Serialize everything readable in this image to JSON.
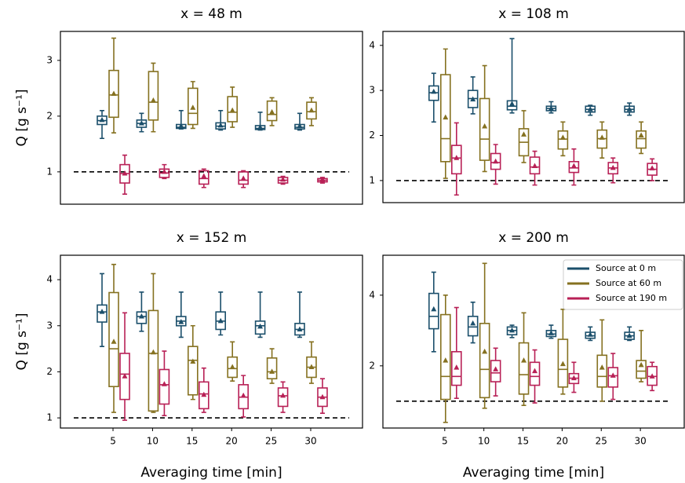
{
  "chart_data": [
    {
      "type": "box",
      "title": "x = 48 m",
      "ylabel": "Q [g s⁻¹]",
      "x": [
        5,
        10,
        15,
        20,
        25,
        30
      ],
      "xlim": [
        -1.65,
        36.55
      ],
      "ylim": [
        0.42,
        3.52
      ],
      "yticks": [
        1,
        2,
        3
      ],
      "reference_line": 1,
      "series": [
        {
          "color": "#1b4f6b",
          "values": [
            {
              "low": 1.6,
              "q1": 1.85,
              "median": 1.92,
              "q3": 2.0,
              "high": 2.1,
              "mean": 1.93
            },
            {
              "low": 1.72,
              "q1": 1.8,
              "median": 1.87,
              "q3": 1.93,
              "high": 2.05,
              "mean": 1.87
            },
            {
              "low": 1.77,
              "q1": 1.78,
              "median": 1.8,
              "q3": 1.85,
              "high": 2.1,
              "mean": 1.82
            },
            {
              "low": 1.75,
              "q1": 1.77,
              "median": 1.82,
              "q3": 1.88,
              "high": 2.1,
              "mean": 1.83
            },
            {
              "low": 1.75,
              "q1": 1.76,
              "median": 1.78,
              "q3": 1.83,
              "high": 2.07,
              "mean": 1.8
            },
            {
              "low": 1.75,
              "q1": 1.77,
              "median": 1.8,
              "q3": 1.85,
              "high": 2.05,
              "mean": 1.82
            }
          ]
        },
        {
          "color": "#857120",
          "values": [
            {
              "low": 1.7,
              "q1": 1.98,
              "median": 2.38,
              "q3": 2.82,
              "high": 3.4,
              "mean": 2.4
            },
            {
              "low": 1.72,
              "q1": 1.93,
              "median": 2.25,
              "q3": 2.8,
              "high": 2.95,
              "mean": 2.28
            },
            {
              "low": 1.78,
              "q1": 1.85,
              "median": 2.05,
              "q3": 2.5,
              "high": 2.62,
              "mean": 2.15
            },
            {
              "low": 1.8,
              "q1": 1.9,
              "median": 2.07,
              "q3": 2.35,
              "high": 2.52,
              "mean": 2.1
            },
            {
              "low": 1.83,
              "q1": 1.92,
              "median": 2.03,
              "q3": 2.27,
              "high": 2.33,
              "mean": 2.07
            },
            {
              "low": 1.83,
              "q1": 1.95,
              "median": 2.08,
              "q3": 2.25,
              "high": 2.33,
              "mean": 2.1
            }
          ]
        },
        {
          "color": "#b82056",
          "values": [
            {
              "low": 0.6,
              "q1": 0.8,
              "median": 0.97,
              "q3": 1.13,
              "high": 1.3,
              "mean": 0.97
            },
            {
              "low": 0.88,
              "q1": 0.9,
              "median": 0.98,
              "q3": 1.05,
              "high": 1.13,
              "mean": 1.0
            },
            {
              "low": 0.72,
              "q1": 0.78,
              "median": 0.88,
              "q3": 1.02,
              "high": 1.05,
              "mean": 0.92
            },
            {
              "low": 0.72,
              "q1": 0.78,
              "median": 0.85,
              "q3": 1.0,
              "high": 1.02,
              "mean": 0.88
            },
            {
              "low": 0.78,
              "q1": 0.8,
              "median": 0.85,
              "q3": 0.9,
              "high": 0.92,
              "mean": 0.86
            },
            {
              "low": 0.8,
              "q1": 0.82,
              "median": 0.85,
              "q3": 0.88,
              "high": 0.9,
              "mean": 0.86
            }
          ]
        }
      ]
    },
    {
      "type": "box",
      "title": "x = 108 m",
      "x": [
        5,
        10,
        15,
        20,
        25,
        30
      ],
      "xlim": [
        -2.9,
        35.6
      ],
      "ylim": [
        0.51,
        4.31
      ],
      "yticks": [
        1,
        2,
        3,
        4
      ],
      "reference_line": 1,
      "series": [
        {
          "color": "#1b4f6b",
          "values": [
            {
              "low": 2.3,
              "q1": 2.78,
              "median": 2.95,
              "q3": 3.1,
              "high": 3.38,
              "mean": 2.97
            },
            {
              "low": 2.48,
              "q1": 2.62,
              "median": 2.82,
              "q3": 3.0,
              "high": 3.3,
              "mean": 2.8
            },
            {
              "low": 2.5,
              "q1": 2.57,
              "median": 2.65,
              "q3": 2.77,
              "high": 4.15,
              "mean": 2.7
            },
            {
              "low": 2.5,
              "q1": 2.55,
              "median": 2.6,
              "q3": 2.65,
              "high": 2.75,
              "mean": 2.6
            },
            {
              "low": 2.45,
              "q1": 2.52,
              "median": 2.58,
              "q3": 2.65,
              "high": 2.67,
              "mean": 2.58
            },
            {
              "low": 2.45,
              "q1": 2.52,
              "median": 2.58,
              "q3": 2.65,
              "high": 2.72,
              "mean": 2.58
            }
          ]
        },
        {
          "color": "#857120",
          "values": [
            {
              "low": 1.05,
              "q1": 1.42,
              "median": 1.93,
              "q3": 3.35,
              "high": 3.92,
              "mean": 2.4
            },
            {
              "low": 1.2,
              "q1": 1.45,
              "median": 1.92,
              "q3": 2.82,
              "high": 3.55,
              "mean": 2.2
            },
            {
              "low": 1.4,
              "q1": 1.55,
              "median": 1.85,
              "q3": 2.15,
              "high": 2.55,
              "mean": 2.02
            },
            {
              "low": 1.55,
              "q1": 1.7,
              "median": 1.92,
              "q3": 2.1,
              "high": 2.3,
              "mean": 1.95
            },
            {
              "low": 1.5,
              "q1": 1.72,
              "median": 1.93,
              "q3": 2.12,
              "high": 2.3,
              "mean": 1.95
            },
            {
              "low": 1.6,
              "q1": 1.72,
              "median": 1.93,
              "q3": 2.1,
              "high": 2.3,
              "mean": 2.0
            }
          ]
        },
        {
          "color": "#b82056",
          "values": [
            {
              "low": 0.68,
              "q1": 1.15,
              "median": 1.5,
              "q3": 1.78,
              "high": 2.28,
              "mean": 1.5
            },
            {
              "low": 0.92,
              "q1": 1.25,
              "median": 1.4,
              "q3": 1.6,
              "high": 1.8,
              "mean": 1.42
            },
            {
              "low": 0.9,
              "q1": 1.15,
              "median": 1.3,
              "q3": 1.52,
              "high": 1.65,
              "mean": 1.32
            },
            {
              "low": 0.9,
              "q1": 1.18,
              "median": 1.28,
              "q3": 1.42,
              "high": 1.7,
              "mean": 1.32
            },
            {
              "low": 0.95,
              "q1": 1.15,
              "median": 1.28,
              "q3": 1.4,
              "high": 1.5,
              "mean": 1.28
            },
            {
              "low": 1.0,
              "q1": 1.12,
              "median": 1.25,
              "q3": 1.38,
              "high": 1.48,
              "mean": 1.27
            }
          ]
        }
      ]
    },
    {
      "type": "box",
      "title": "x = 152 m",
      "ylabel": "Q [g s⁻¹]",
      "xlabel": "Averaging time [min]",
      "x": [
        5,
        10,
        15,
        20,
        25,
        30
      ],
      "xticks": [
        5,
        10,
        15,
        20,
        25,
        30
      ],
      "xlim": [
        -1.65,
        36.55
      ],
      "ylim": [
        0.78,
        4.53
      ],
      "yticks": [
        1,
        2,
        3,
        4
      ],
      "reference_line": 1,
      "series": [
        {
          "color": "#1b4f6b",
          "values": [
            {
              "low": 2.55,
              "q1": 3.08,
              "median": 3.3,
              "q3": 3.45,
              "high": 4.13,
              "mean": 3.3
            },
            {
              "low": 2.88,
              "q1": 3.05,
              "median": 3.2,
              "q3": 3.3,
              "high": 3.73,
              "mean": 3.2
            },
            {
              "low": 2.75,
              "q1": 3.0,
              "median": 3.1,
              "q3": 3.2,
              "high": 3.73,
              "mean": 3.08
            },
            {
              "low": 2.8,
              "q1": 2.92,
              "median": 3.1,
              "q3": 3.3,
              "high": 3.73,
              "mean": 3.1
            },
            {
              "low": 2.75,
              "q1": 2.82,
              "median": 3.0,
              "q3": 3.1,
              "high": 3.73,
              "mean": 2.98
            },
            {
              "low": 2.75,
              "q1": 2.8,
              "median": 2.92,
              "q3": 3.05,
              "high": 3.73,
              "mean": 2.92
            }
          ]
        },
        {
          "color": "#857120",
          "values": [
            {
              "low": 1.12,
              "q1": 1.68,
              "median": 2.5,
              "q3": 3.72,
              "high": 4.33,
              "mean": 2.65
            },
            {
              "low": 1.12,
              "q1": 1.15,
              "median": 2.4,
              "q3": 3.33,
              "high": 4.13,
              "mean": 2.42
            },
            {
              "low": 1.4,
              "q1": 1.5,
              "median": 2.25,
              "q3": 2.55,
              "high": 3.0,
              "mean": 2.22
            },
            {
              "low": 1.8,
              "q1": 1.88,
              "median": 2.07,
              "q3": 2.32,
              "high": 2.65,
              "mean": 2.1
            },
            {
              "low": 1.75,
              "q1": 1.85,
              "median": 2.0,
              "q3": 2.3,
              "high": 2.5,
              "mean": 2.0
            },
            {
              "low": 1.75,
              "q1": 1.88,
              "median": 2.1,
              "q3": 2.32,
              "high": 2.65,
              "mean": 2.1
            }
          ]
        },
        {
          "color": "#b82056",
          "values": [
            {
              "low": 0.95,
              "q1": 1.4,
              "median": 1.95,
              "q3": 2.4,
              "high": 3.28,
              "mean": 1.9
            },
            {
              "low": 1.05,
              "q1": 1.3,
              "median": 1.72,
              "q3": 2.05,
              "high": 2.45,
              "mean": 1.73
            },
            {
              "low": 1.12,
              "q1": 1.2,
              "median": 1.52,
              "q3": 1.78,
              "high": 2.08,
              "mean": 1.5
            },
            {
              "low": 1.02,
              "q1": 1.2,
              "median": 1.45,
              "q3": 1.72,
              "high": 1.92,
              "mean": 1.48
            },
            {
              "low": 1.12,
              "q1": 1.25,
              "median": 1.48,
              "q3": 1.65,
              "high": 1.78,
              "mean": 1.48
            },
            {
              "low": 1.1,
              "q1": 1.25,
              "median": 1.45,
              "q3": 1.65,
              "high": 1.85,
              "mean": 1.45
            }
          ]
        }
      ]
    },
    {
      "type": "box",
      "title": "x = 200 m",
      "xlabel": "Averaging time [min]",
      "x": [
        5,
        10,
        15,
        20,
        25,
        30
      ],
      "xticks": [
        5,
        10,
        15,
        20,
        25,
        30
      ],
      "xlim": [
        -2.9,
        35.6
      ],
      "ylim": [
        0.24,
        5.13
      ],
      "yticks": [
        2,
        4
      ],
      "reference_line": 1,
      "legend": "upper right",
      "series": [
        {
          "name": "Source at 0 m",
          "color": "#1b4f6b",
          "values": [
            {
              "low": 2.4,
              "q1": 3.05,
              "median": 3.4,
              "q3": 4.05,
              "high": 4.65,
              "mean": 3.6
            },
            {
              "low": 2.65,
              "q1": 2.85,
              "median": 3.1,
              "q3": 3.4,
              "high": 3.8,
              "mean": 3.2
            },
            {
              "low": 2.8,
              "q1": 2.88,
              "median": 3.0,
              "q3": 3.1,
              "high": 3.15,
              "mean": 3.0
            },
            {
              "low": 2.78,
              "q1": 2.83,
              "median": 2.9,
              "q3": 3.0,
              "high": 3.15,
              "mean": 2.92
            },
            {
              "low": 2.72,
              "q1": 2.78,
              "median": 2.85,
              "q3": 2.95,
              "high": 3.1,
              "mean": 2.88
            },
            {
              "low": 2.72,
              "q1": 2.75,
              "median": 2.85,
              "q3": 2.95,
              "high": 3.1,
              "mean": 2.85
            }
          ]
        },
        {
          "name": "Source at 60 m",
          "color": "#857120",
          "values": [
            {
              "low": 0.4,
              "q1": 1.05,
              "median": 1.7,
              "q3": 3.45,
              "high": 4.0,
              "mean": 2.15
            },
            {
              "low": 0.8,
              "q1": 1.1,
              "median": 1.9,
              "q3": 3.2,
              "high": 4.9,
              "mean": 2.4
            },
            {
              "low": 0.88,
              "q1": 1.2,
              "median": 1.75,
              "q3": 2.65,
              "high": 3.5,
              "mean": 2.15
            },
            {
              "low": 1.2,
              "q1": 1.4,
              "median": 1.9,
              "q3": 2.75,
              "high": 3.6,
              "mean": 2.05
            },
            {
              "low": 1.0,
              "q1": 1.4,
              "median": 1.7,
              "q3": 2.3,
              "high": 3.3,
              "mean": 1.95
            },
            {
              "low": 1.55,
              "q1": 1.65,
              "median": 1.85,
              "q3": 2.15,
              "high": 3.0,
              "mean": 2.02
            }
          ]
        },
        {
          "name": "Source at 190 m",
          "color": "#b82056",
          "values": [
            {
              "low": 1.08,
              "q1": 1.45,
              "median": 1.7,
              "q3": 2.4,
              "high": 3.65,
              "mean": 1.95
            },
            {
              "low": 1.15,
              "q1": 1.55,
              "median": 1.8,
              "q3": 2.15,
              "high": 2.5,
              "mean": 1.9
            },
            {
              "low": 0.95,
              "q1": 1.45,
              "median": 1.7,
              "q3": 2.1,
              "high": 2.45,
              "mean": 1.85
            },
            {
              "low": 1.25,
              "q1": 1.5,
              "median": 1.65,
              "q3": 1.78,
              "high": 2.1,
              "mean": 1.65
            },
            {
              "low": 1.05,
              "q1": 1.4,
              "median": 1.72,
              "q3": 1.95,
              "high": 2.35,
              "mean": 1.72
            },
            {
              "low": 1.3,
              "q1": 1.45,
              "median": 1.7,
              "q3": 1.98,
              "high": 2.1,
              "mean": 1.7
            }
          ]
        }
      ]
    }
  ]
}
